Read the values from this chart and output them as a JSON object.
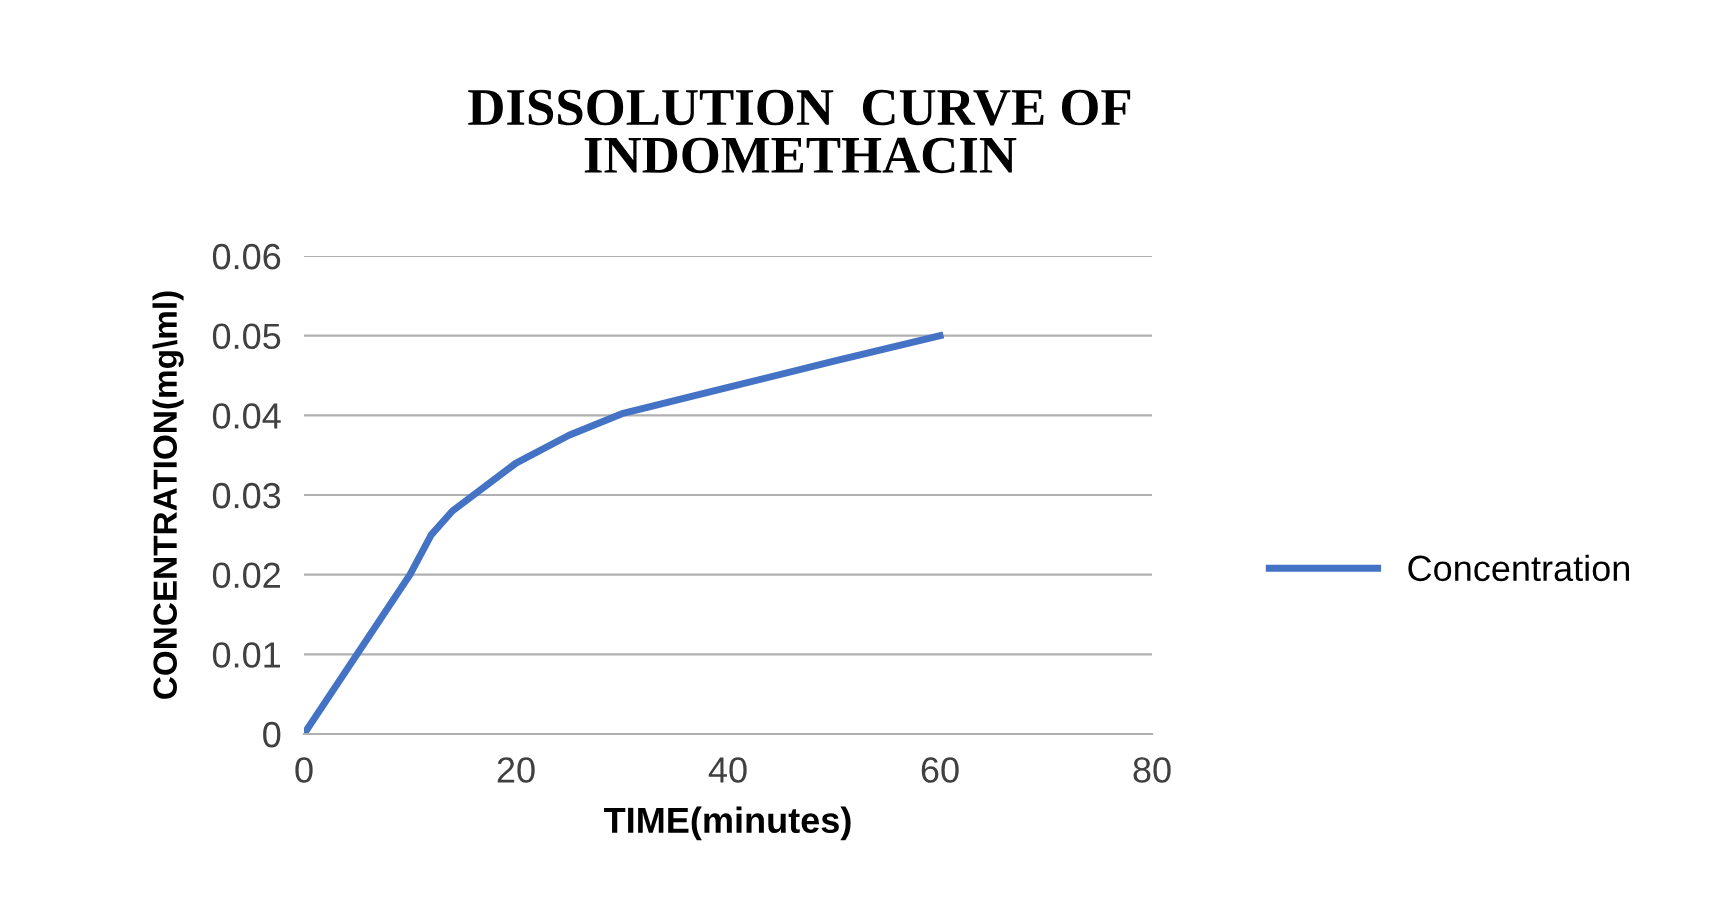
{
  "chart_data": {
    "type": "line",
    "title": "DISSOLUTION  CURVE OF\nINDOMETHACIN",
    "xlabel": "TIME(minutes)",
    "ylabel": "CONCENTRATION(mg\\ml)",
    "series": [
      {
        "name": "Concentration",
        "color": "#4472c4",
        "x": [
          0,
          10,
          12,
          14,
          20,
          25,
          30,
          40,
          50,
          60
        ],
        "values": [
          0,
          0.02,
          0.025,
          0.028,
          0.034,
          0.0375,
          0.0402,
          0.0435,
          0.0468,
          0.05
        ]
      }
    ],
    "xlim": [
      0,
      80
    ],
    "xticks": [
      0,
      20,
      40,
      60,
      80
    ],
    "ylim": [
      0,
      0.06
    ],
    "yticks": [
      0,
      0.01,
      0.02,
      0.03,
      0.04,
      0.05,
      0.06
    ],
    "grid": "y",
    "legend": "right",
    "marker": "none",
    "line_style": "solid"
  }
}
